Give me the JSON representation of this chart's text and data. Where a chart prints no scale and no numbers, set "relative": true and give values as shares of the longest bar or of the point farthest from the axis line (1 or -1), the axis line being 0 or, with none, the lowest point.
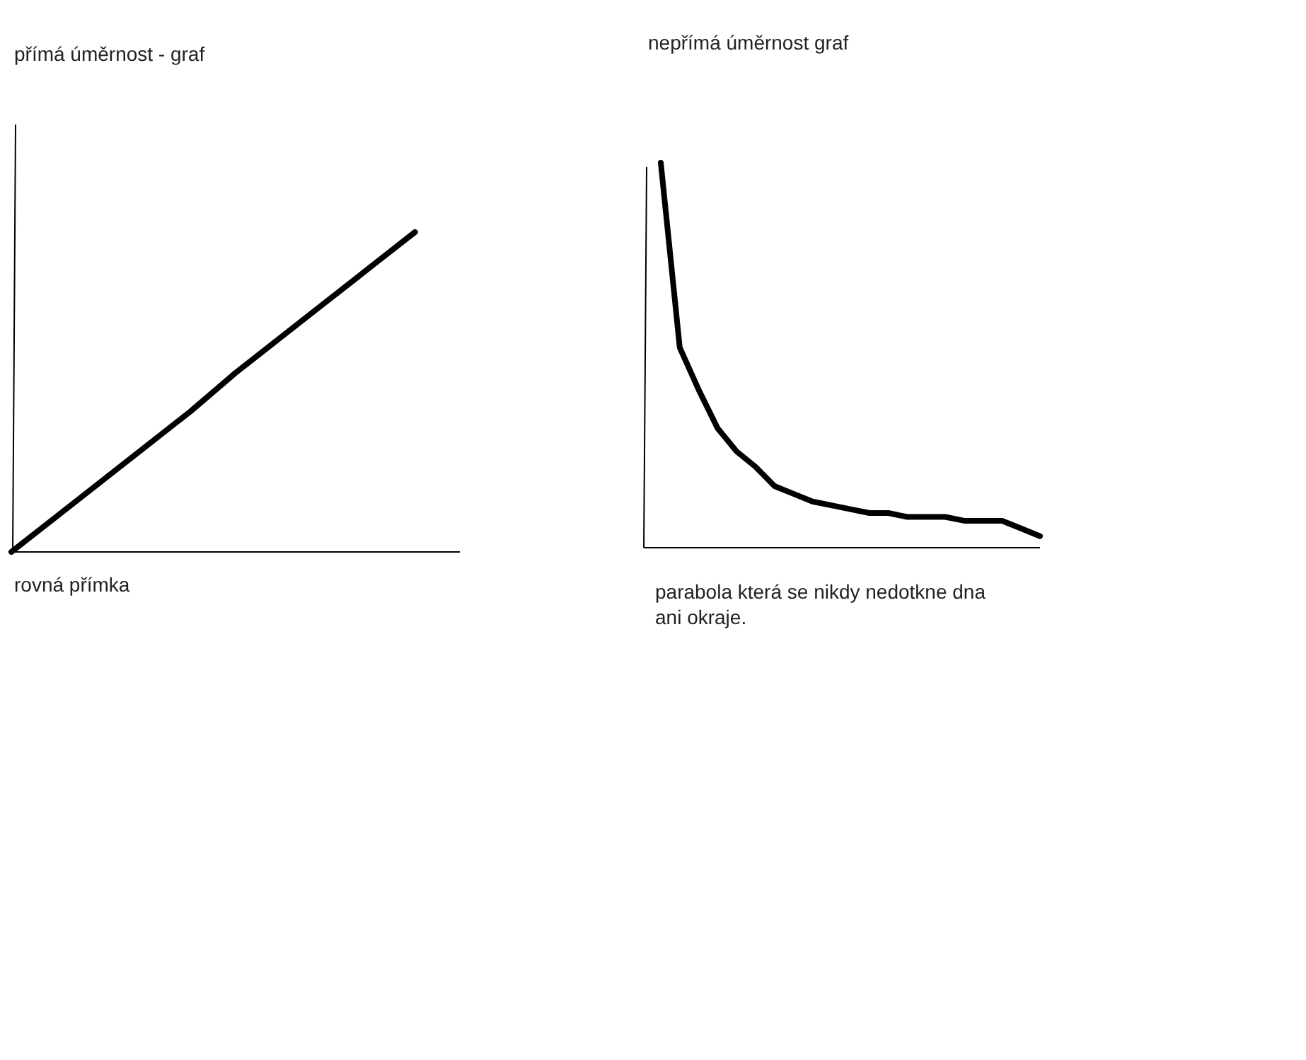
{
  "chart_data": [
    {
      "type": "line",
      "title": "přímá úměrnost - graf",
      "relative": true,
      "tick_labels": false,
      "categories": [
        null,
        null,
        null,
        null,
        null,
        null,
        null,
        null,
        null,
        null,
        null
      ],
      "series": [
        {
          "color": "#000000",
          "values": [
            0,
            0.11,
            0.22,
            0.33,
            0.44,
            0.56,
            0.67,
            0.78,
            0.89,
            1,
            null
          ]
        }
      ],
      "annotations": [
        "rovná přímka"
      ]
    },
    {
      "type": "line",
      "title": "nepřímá úměrnost graf",
      "relative": true,
      "tick_labels": false,
      "categories": [
        null,
        null,
        null,
        null,
        null,
        null,
        null,
        null,
        null,
        null,
        null,
        null,
        null,
        null,
        null,
        null,
        null,
        null,
        null,
        null,
        null
      ],
      "series": [
        {
          "color": "#000000",
          "values": [
            1,
            0.52,
            0.41,
            0.31,
            0.25,
            0.21,
            0.16,
            0.14,
            0.12,
            0.11,
            0.1,
            0.09,
            0.09,
            0.08,
            0.08,
            0.08,
            0.07,
            0.07,
            0.07,
            0.05,
            0.03
          ]
        }
      ],
      "annotations": [
        "parabola která se nikdy nedotkne dna ani okraje."
      ]
    }
  ]
}
